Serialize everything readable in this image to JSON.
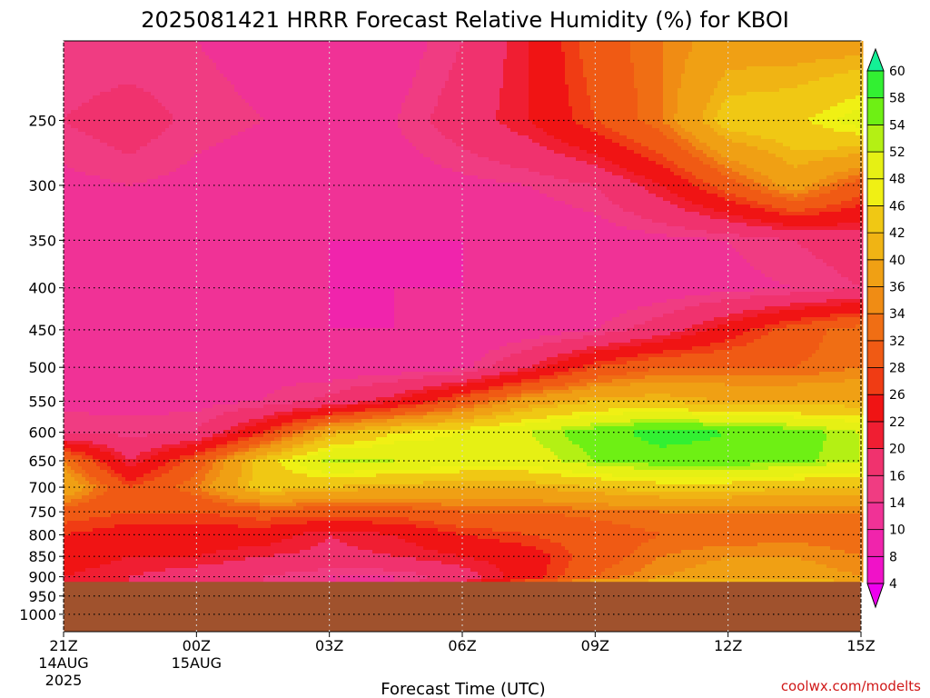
{
  "chart_data": {
    "type": "heatmap",
    "title": "2025081421 HRRR Forecast Relative Humidity (%) for KBOI",
    "xlabel": "Forecast Time (UTC)",
    "ylabel": "",
    "x_ticks": [
      {
        "label": "21Z",
        "hour": 0,
        "sub1": "14AUG",
        "sub2": "2025"
      },
      {
        "label": "00Z",
        "hour": 3,
        "sub1": "15AUG",
        "sub2": ""
      },
      {
        "label": "03Z",
        "hour": 6,
        "sub1": "",
        "sub2": ""
      },
      {
        "label": "06Z",
        "hour": 9,
        "sub1": "",
        "sub2": ""
      },
      {
        "label": "09Z",
        "hour": 12,
        "sub1": "",
        "sub2": ""
      },
      {
        "label": "12Z",
        "hour": 15,
        "sub1": "",
        "sub2": ""
      },
      {
        "label": "15Z",
        "hour": 18,
        "sub1": "",
        "sub2": ""
      }
    ],
    "y_ticks": [
      250,
      300,
      350,
      400,
      450,
      500,
      550,
      600,
      650,
      700,
      750,
      800,
      850,
      900,
      950,
      1000
    ],
    "xlim": [
      0,
      18
    ],
    "ylim_pressure": [
      200,
      1050
    ],
    "surface_pressure": 913,
    "grid": true,
    "colorbar": {
      "levels": [
        4,
        8,
        10,
        14,
        16,
        20,
        22,
        26,
        28,
        32,
        34,
        36,
        40,
        42,
        46,
        48,
        52,
        54,
        58,
        60
      ],
      "colors": [
        "#ee00ee",
        "#f012c8",
        "#f024ac",
        "#f03296",
        "#f03c82",
        "#f0326e",
        "#f01e32",
        "#f01414",
        "#f03c14",
        "#f05a14",
        "#f06e14",
        "#f08c14",
        "#f0a014",
        "#f0b414",
        "#f0c814",
        "#f0f014",
        "#e6f014",
        "#b4f014",
        "#6ef014",
        "#32f032",
        "#14f096"
      ]
    },
    "hours": [
      0,
      1.5,
      3,
      4.5,
      6,
      7.5,
      9,
      10.5,
      12,
      13.5,
      15,
      16.5,
      18
    ],
    "pressures": [
      200,
      250,
      300,
      350,
      400,
      450,
      500,
      550,
      600,
      650,
      700,
      750,
      800,
      850,
      900,
      913
    ],
    "rh_grid": [
      [
        14,
        14,
        14,
        13,
        12,
        12,
        16,
        22,
        30,
        34,
        38,
        38,
        38
      ],
      [
        16,
        18,
        15,
        14,
        14,
        14,
        18,
        22,
        28,
        34,
        44,
        45,
        50
      ],
      [
        13,
        14,
        13,
        12,
        12,
        12,
        13,
        14,
        16,
        22,
        30,
        38,
        30
      ],
      [
        12,
        12,
        11,
        11,
        10,
        10,
        10,
        11,
        12,
        13,
        14,
        16,
        18
      ],
      [
        12,
        12,
        11,
        11,
        10,
        10,
        10,
        11,
        11,
        12,
        13,
        14,
        16
      ],
      [
        13,
        13,
        12,
        12,
        10,
        10,
        11,
        12,
        14,
        18,
        24,
        30,
        34
      ],
      [
        13,
        13,
        12,
        13,
        12,
        12,
        13,
        20,
        28,
        32,
        32,
        32,
        34
      ],
      [
        13,
        13,
        13,
        14,
        17,
        22,
        30,
        38,
        42,
        42,
        40,
        40,
        40
      ],
      [
        16,
        15,
        16,
        26,
        40,
        46,
        48,
        52,
        56,
        60,
        58,
        56,
        52
      ],
      [
        34,
        20,
        30,
        44,
        53,
        52,
        50,
        50,
        54,
        56,
        56,
        55,
        52
      ],
      [
        40,
        28,
        34,
        44,
        42,
        40,
        40,
        40,
        42,
        44,
        44,
        42,
        42
      ],
      [
        30,
        28,
        28,
        30,
        30,
        30,
        32,
        32,
        33,
        34,
        34,
        34,
        34
      ],
      [
        26,
        24,
        24,
        24,
        20,
        22,
        26,
        28,
        30,
        32,
        32,
        33,
        32
      ],
      [
        24,
        22,
        22,
        20,
        19,
        20,
        22,
        24,
        30,
        34,
        36,
        36,
        34
      ],
      [
        22,
        20,
        18,
        16,
        14,
        14,
        18,
        24,
        32,
        36,
        38,
        38,
        36
      ],
      [
        22,
        20,
        18,
        16,
        14,
        14,
        20,
        30,
        38,
        42,
        42,
        42,
        40
      ]
    ]
  },
  "credit": "coolwx.com/modelts",
  "ground_color": "#a0522d"
}
